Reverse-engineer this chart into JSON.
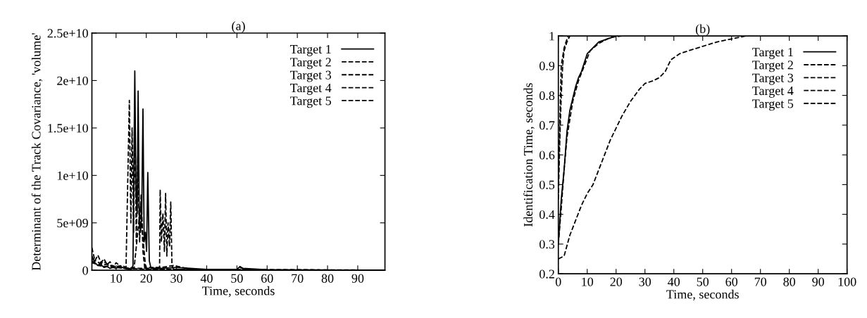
{
  "chart_data": [
    {
      "type": "line",
      "title": "(a)",
      "xlabel": "Time, seconds",
      "ylabel": "Determinant of the Track Covariance, 'volume'",
      "xlim": [
        2,
        99
      ],
      "xticks": [
        10,
        20,
        30,
        40,
        50,
        60,
        70,
        80,
        90
      ],
      "ylim": [
        0,
        25000000000.0
      ],
      "yticks": [
        0,
        {
          "value": 5000000000.0,
          "label": "5e+09"
        },
        {
          "value": 10000000000.0,
          "label": "1e+10"
        },
        {
          "value": 15000000000.0,
          "label": "1.5e+10"
        },
        {
          "value": 20000000000.0,
          "label": "2e+10"
        },
        {
          "value": 25000000000.0,
          "label": "2.5e+10"
        }
      ],
      "grid": false,
      "legend": "top right",
      "series": [
        {
          "name": "Target 1",
          "color": "#000000",
          "line_style": "solid",
          "x": [
            2,
            3,
            4,
            5,
            6,
            7,
            8,
            9,
            10,
            11,
            12,
            13,
            14,
            15,
            15.6,
            16.2,
            16.6,
            17,
            17.3,
            17.7,
            18.1,
            18.5,
            18.9,
            19.3,
            19.7,
            20.1,
            20.5,
            21,
            21.5,
            22,
            25,
            30,
            40,
            50,
            51,
            52,
            60,
            70,
            80,
            90,
            99
          ],
          "values": [
            1500000000.0,
            800000000.0,
            500000000.0,
            600000000.0,
            300000000.0,
            400000000.0,
            200000000.0,
            300000000.0,
            200000000.0,
            400000000.0,
            300000000.0,
            200000000.0,
            100000000.0,
            100000000.0,
            500000000.0,
            21000000000.0,
            8000000000.0,
            6000000000.0,
            18900000000.0,
            5000000000.0,
            4000000000.0,
            6000000000.0,
            17000000000.0,
            3000000000.0,
            4000000000.0,
            2000000000.0,
            10300000000.0,
            1000000000.0,
            300000000.0,
            200000000.0,
            200000000.0,
            300000000.0,
            100000000.0,
            100000000.0,
            400000000.0,
            200000000.0,
            50000000.0,
            30000000.0,
            20000000.0,
            20000000.0,
            20000000.0
          ]
        },
        {
          "name": "Target 2",
          "color": "#000000",
          "line_style": "dashed",
          "x": [
            2,
            4,
            6,
            8,
            10,
            12,
            13.3,
            14.4,
            14.9,
            15.3,
            15.8,
            16.2,
            16.7,
            17.2,
            17.8,
            18.3,
            18.9,
            19.5,
            22,
            30,
            50,
            99
          ],
          "values": [
            800000000.0,
            600000000.0,
            900000000.0,
            500000000.0,
            400000000.0,
            500000000.0,
            300000000.0,
            17900000000.0,
            5000000000.0,
            15000000000.0,
            4000000000.0,
            16000000000.0,
            3000000000.0,
            12000000000.0,
            3000000000.0,
            8000000000.0,
            2000000000.0,
            200000000.0,
            100000000.0,
            100000000.0,
            50000000.0,
            20000000.0
          ]
        },
        {
          "name": "Target 3",
          "color": "#000000",
          "line_style": "dashed",
          "x": [
            2,
            5,
            8,
            11,
            14,
            20,
            24.4,
            24.6,
            25,
            25.5,
            26,
            26.4,
            26.8,
            27.2,
            27.7,
            28.1,
            28.5,
            29,
            40,
            99
          ],
          "values": [
            1200000000.0,
            700000000.0,
            500000000.0,
            300000000.0,
            200000000.0,
            200000000.0,
            200000000.0,
            8500000000.0,
            3000000000.0,
            6000000000.0,
            2000000000.0,
            8100000000.0,
            1500000000.0,
            5000000000.0,
            2500000000.0,
            7200000000.0,
            500000000.0,
            100000000.0,
            50000000.0,
            20000000.0
          ]
        },
        {
          "name": "Target 4",
          "color": "#000000",
          "line_style": "dashed",
          "x": [
            2,
            4,
            7,
            10,
            13,
            16,
            17.5,
            18.2,
            19,
            19.8,
            25,
            29,
            35,
            99
          ],
          "values": [
            1000000000.0,
            500000000.0,
            400000000.0,
            300000000.0,
            200000000.0,
            300000000.0,
            5000000000.0,
            7000000000.0,
            3000000000.0,
            300000000.0,
            300000000.0,
            500000000.0,
            100000000.0,
            20000000.0
          ]
        },
        {
          "name": "Target 5",
          "color": "#000000",
          "line_style": "dashed",
          "x": [
            2,
            3,
            4,
            5,
            6,
            7,
            8,
            9,
            10,
            12,
            14,
            20,
            30,
            50,
            51,
            53,
            60,
            99
          ],
          "values": [
            2400000000.0,
            1000000000.0,
            1600000000.0,
            800000000.0,
            1200000000.0,
            600000000.0,
            900000000.0,
            300000000.0,
            800000000.0,
            300000000.0,
            200000000.0,
            100000000.0,
            100000000.0,
            50000000.0,
            300000000.0,
            50000000.0,
            30000000.0,
            20000000.0
          ]
        }
      ]
    },
    {
      "type": "line",
      "title": "(b)",
      "xlabel": "Time, seconds",
      "ylabel": "Identification Time, seconds",
      "xlim": [
        0,
        100
      ],
      "xticks": [
        0,
        10,
        20,
        30,
        40,
        50,
        60,
        70,
        80,
        90,
        100
      ],
      "ylim": [
        0.2,
        1
      ],
      "yticks": [
        0.2,
        0.3,
        0.4,
        0.5,
        0.6,
        0.7,
        0.8,
        0.9,
        1
      ],
      "grid": false,
      "legend": "top right",
      "series": [
        {
          "name": "Target 1",
          "color": "#000000",
          "line_style": "solid",
          "x": [
            0,
            1,
            2,
            3,
            4,
            5,
            6,
            7,
            8,
            9,
            10,
            12,
            14,
            17,
            20,
            100
          ],
          "values": [
            0.3,
            0.45,
            0.55,
            0.68,
            0.75,
            0.79,
            0.83,
            0.86,
            0.88,
            0.91,
            0.94,
            0.96,
            0.98,
            0.99,
            1.0,
            1.0
          ]
        },
        {
          "name": "Target 2",
          "color": "#000000",
          "line_style": "dashed",
          "x": [
            0,
            1,
            2,
            3,
            5,
            7,
            9,
            11,
            14,
            18,
            22,
            100
          ],
          "values": [
            0.3,
            0.42,
            0.55,
            0.66,
            0.78,
            0.85,
            0.9,
            0.95,
            0.975,
            0.995,
            1.0,
            1.0
          ]
        },
        {
          "name": "Target 3",
          "color": "#000000",
          "line_style": "dashed",
          "x": [
            0,
            0.5,
            1,
            1.5,
            2,
            3,
            3.5,
            100
          ],
          "values": [
            0.5,
            0.7,
            0.9,
            0.93,
            0.96,
            0.99,
            1.0,
            1.0
          ]
        },
        {
          "name": "Target 4",
          "color": "#000000",
          "line_style": "dashed",
          "x": [
            0,
            0.5,
            1,
            1.5,
            2,
            3,
            4,
            100
          ],
          "values": [
            0.45,
            0.65,
            0.8,
            0.9,
            0.95,
            0.98,
            1.0,
            1.0
          ]
        },
        {
          "name": "Target 5",
          "color": "#000000",
          "line_style": "dashed",
          "x": [
            0,
            2,
            4,
            6,
            8,
            10,
            12,
            14,
            16,
            18,
            20,
            22,
            25,
            28,
            30,
            33,
            35,
            37,
            39,
            42,
            45,
            50,
            55,
            60,
            65,
            70,
            100
          ],
          "values": [
            0.25,
            0.26,
            0.33,
            0.38,
            0.43,
            0.47,
            0.5,
            0.55,
            0.6,
            0.65,
            0.69,
            0.73,
            0.78,
            0.82,
            0.84,
            0.85,
            0.86,
            0.88,
            0.92,
            0.94,
            0.95,
            0.965,
            0.98,
            0.99,
            1.0,
            1.0,
            1.0
          ]
        }
      ]
    }
  ]
}
